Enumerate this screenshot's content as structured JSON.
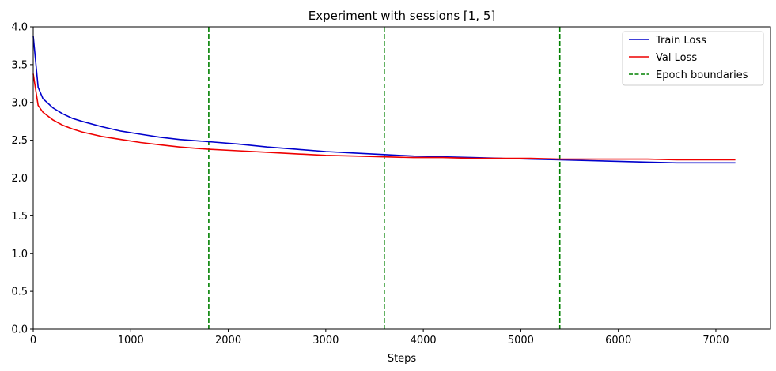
{
  "chart_data": {
    "type": "line",
    "title": "Experiment with sessions [1, 5]",
    "xlabel": "Steps",
    "ylabel": "",
    "xlim": [
      0,
      7560
    ],
    "ylim": [
      0,
      4.0
    ],
    "xticks": [
      0,
      1000,
      2000,
      3000,
      4000,
      5000,
      6000,
      7000
    ],
    "yticks": [
      0.0,
      0.5,
      1.0,
      1.5,
      2.0,
      2.5,
      3.0,
      3.5,
      4.0
    ],
    "grid": false,
    "legend_position": "top-right",
    "series": [
      {
        "name": "Train Loss",
        "color": "#0000cc",
        "style": "solid",
        "x": [
          0,
          50,
          100,
          200,
          300,
          400,
          500,
          700,
          900,
          1100,
          1300,
          1500,
          1800,
          2100,
          2400,
          2700,
          3000,
          3300,
          3600,
          3900,
          4200,
          4500,
          4800,
          5100,
          5400,
          5700,
          6000,
          6300,
          6600,
          6900,
          7200
        ],
        "values": [
          3.88,
          3.2,
          3.05,
          2.93,
          2.85,
          2.79,
          2.75,
          2.68,
          2.62,
          2.58,
          2.54,
          2.51,
          2.48,
          2.45,
          2.41,
          2.38,
          2.35,
          2.33,
          2.31,
          2.29,
          2.28,
          2.27,
          2.26,
          2.25,
          2.24,
          2.23,
          2.22,
          2.21,
          2.2,
          2.2,
          2.2
        ]
      },
      {
        "name": "Val Loss",
        "color": "#ee0000",
        "style": "solid",
        "x": [
          0,
          50,
          100,
          200,
          300,
          400,
          500,
          700,
          900,
          1100,
          1300,
          1500,
          1800,
          2100,
          2400,
          2700,
          3000,
          3300,
          3600,
          3900,
          4200,
          4500,
          4800,
          5100,
          5400,
          5700,
          6000,
          6300,
          6600,
          6900,
          7200
        ],
        "values": [
          3.38,
          2.96,
          2.87,
          2.77,
          2.7,
          2.65,
          2.61,
          2.55,
          2.51,
          2.47,
          2.44,
          2.41,
          2.38,
          2.36,
          2.34,
          2.32,
          2.3,
          2.29,
          2.28,
          2.27,
          2.27,
          2.26,
          2.26,
          2.26,
          2.25,
          2.25,
          2.25,
          2.25,
          2.24,
          2.24,
          2.24
        ]
      }
    ],
    "vlines": {
      "name": "Epoch boundaries",
      "color": "#008000",
      "style": "dashed",
      "x": [
        1800,
        3600,
        5400
      ]
    }
  }
}
